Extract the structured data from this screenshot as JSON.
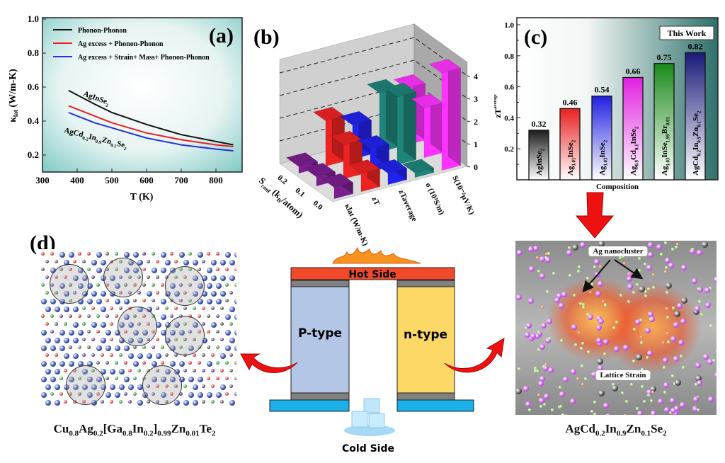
{
  "panel_labels": {
    "a": "(a)",
    "b": "(b)",
    "c": "(c)",
    "d": "(d)"
  },
  "chart_data": [
    {
      "id": "a",
      "type": "line",
      "title": "",
      "xlabel": "T (K)",
      "ylabel_symbol": "κ",
      "ylabel_sub": "lat",
      "ylabel_unit": " (W/m-K)",
      "xlim": [
        300,
        870
      ],
      "ylim": [
        0.1,
        1.0
      ],
      "xticks": [
        300,
        400,
        500,
        600,
        700,
        800
      ],
      "yticks": [
        0.2,
        0.4,
        0.6,
        0.8,
        1.0
      ],
      "x": [
        375,
        450,
        500,
        600,
        700,
        800,
        850
      ],
      "series": [
        {
          "name": "Phonon-Phonon",
          "color": "#111111",
          "values": [
            0.58,
            0.5,
            0.45,
            0.38,
            0.32,
            0.28,
            0.26
          ]
        },
        {
          "name": "Ag excess + Phonon-Phonon",
          "color": "#e82020",
          "values": [
            0.49,
            0.43,
            0.39,
            0.33,
            0.29,
            0.26,
            0.25
          ]
        },
        {
          "name": "Ag excess + Strain+ Mass+ Phonon-Phonon",
          "color": "#2233dd",
          "values": [
            0.45,
            0.39,
            0.36,
            0.3,
            0.26,
            0.235,
            0.225
          ]
        }
      ],
      "legend": "top-left",
      "annotations": [
        "AgInSe2",
        "AgCd0.2In0.9Zn0.1Se2"
      ]
    },
    {
      "id": "b",
      "type": "bar3d",
      "row_axis_label": "S_conf (k_B/atom)",
      "row_axis_label_parts": {
        "main": "S",
        "sub": "conf",
        "rest": " (k",
        "sub2": "B",
        "rest2": "/atom)"
      },
      "rows": [
        "0.0",
        "0.1",
        "0.2"
      ],
      "columns": [
        "κlat (W/m-K)",
        "zT",
        "zTaverage",
        "σ (10³S/m)",
        "S(10⁻²μV/K)"
      ],
      "column_colors": [
        "#7a1f8f",
        "#ee2222",
        "#2222ee",
        "#1f857a",
        "#ff33ff"
      ],
      "zticks": [
        0,
        1,
        2,
        3,
        4
      ],
      "values": [
        [
          0.5,
          0.8,
          0.5,
          0.2,
          4.3
        ],
        [
          0.4,
          1.5,
          1.0,
          3.0,
          2.2
        ],
        [
          0.3,
          2.0,
          1.5,
          2.6,
          2.5
        ]
      ]
    },
    {
      "id": "c",
      "type": "bar",
      "xlabel": "Composition",
      "ylabel": "zT",
      "ylabel_sub": "average",
      "ylim": [
        0,
        1.05
      ],
      "yticks": [
        0.2,
        0.4,
        0.6,
        0.8,
        1.0
      ],
      "categories": [
        "AgInSe2",
        "Ag1.01InSe2",
        "Ag1.03InSe2",
        "Ag0.9Cd0.1InSe2",
        "Ag1.03InSe1.99Br0.01",
        "AgCd0.2In0.9Zn0.1Se2"
      ],
      "values": [
        0.32,
        0.46,
        0.54,
        0.66,
        0.75,
        0.82
      ],
      "value_labels": [
        "0.32",
        "0.46",
        "0.54",
        "0.66",
        "0.75",
        "0.82"
      ],
      "colors": [
        "#1a1a1a",
        "#e82020",
        "#2020e0",
        "#e020e0",
        "#1a8a1a",
        "#1a1a7a"
      ],
      "legend_box": "This Work"
    }
  ],
  "device": {
    "hot_side": "Hot Side",
    "cold_side": "Cold Side",
    "p_type": "P-type",
    "n_type": "n-type",
    "colors": {
      "hot": "#f04a2a",
      "p": "#b3c6e6",
      "n": "#fcd867",
      "contact": "#808080",
      "cold": "#1ab0ea"
    }
  },
  "panel_d": {
    "formula": "Cu0.8Ag0.2[Ga0.8In0.2]0.99Zn0.01Te2"
  },
  "panel_e": {
    "formula": "AgCd0.2In0.9Zn0.1Se2",
    "label_cluster": "Ag nanocluster",
    "label_strain": "Lattice Strain"
  }
}
